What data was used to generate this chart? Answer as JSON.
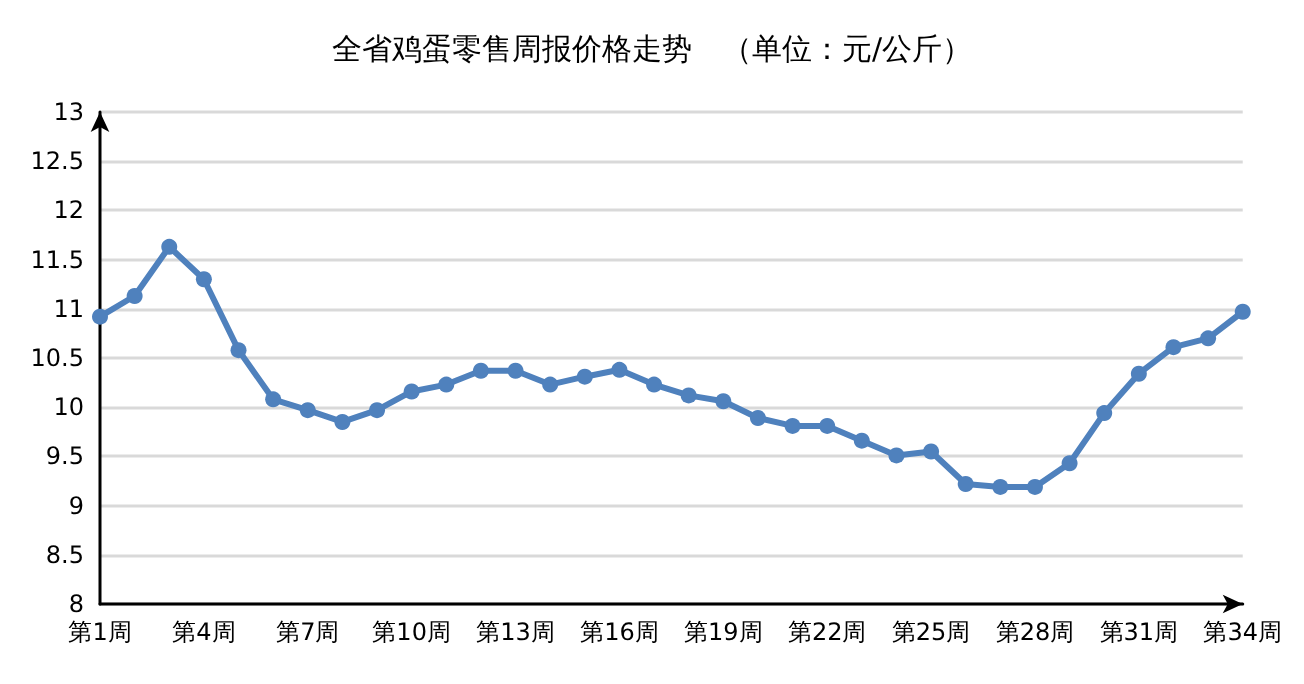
{
  "chart_data": {
    "type": "line",
    "title": "全省鸡蛋零售周报价格走势　（单位：元/公斤）",
    "categories": [
      "第1周",
      null,
      null,
      "第4周",
      null,
      null,
      "第7周",
      null,
      null,
      "第10周",
      null,
      null,
      "第13周",
      null,
      null,
      "第16周",
      null,
      null,
      "第19周",
      null,
      null,
      "第22周",
      null,
      null,
      "第25周",
      null,
      null,
      "第28周",
      null,
      null,
      "第31周",
      null,
      null,
      "第34周"
    ],
    "series": [
      {
        "color": "#4f81bd",
        "values": [
          10.92,
          11.13,
          11.63,
          11.3,
          10.58,
          10.08,
          9.97,
          9.85,
          9.97,
          10.16,
          10.23,
          10.37,
          10.37,
          10.23,
          10.31,
          10.38,
          10.23,
          10.12,
          10.06,
          9.89,
          9.81,
          9.81,
          9.66,
          9.51,
          9.55,
          9.22,
          9.19,
          9.19,
          9.43,
          9.94,
          10.34,
          10.61,
          10.7,
          10.97
        ]
      }
    ],
    "ylim": [
      8,
      13
    ],
    "yticks": [
      8,
      8.5,
      9,
      9.5,
      10,
      10.5,
      11,
      11.5,
      12,
      12.5,
      13
    ],
    "grid": "y",
    "marker": "circle",
    "line_style": "solid"
  }
}
